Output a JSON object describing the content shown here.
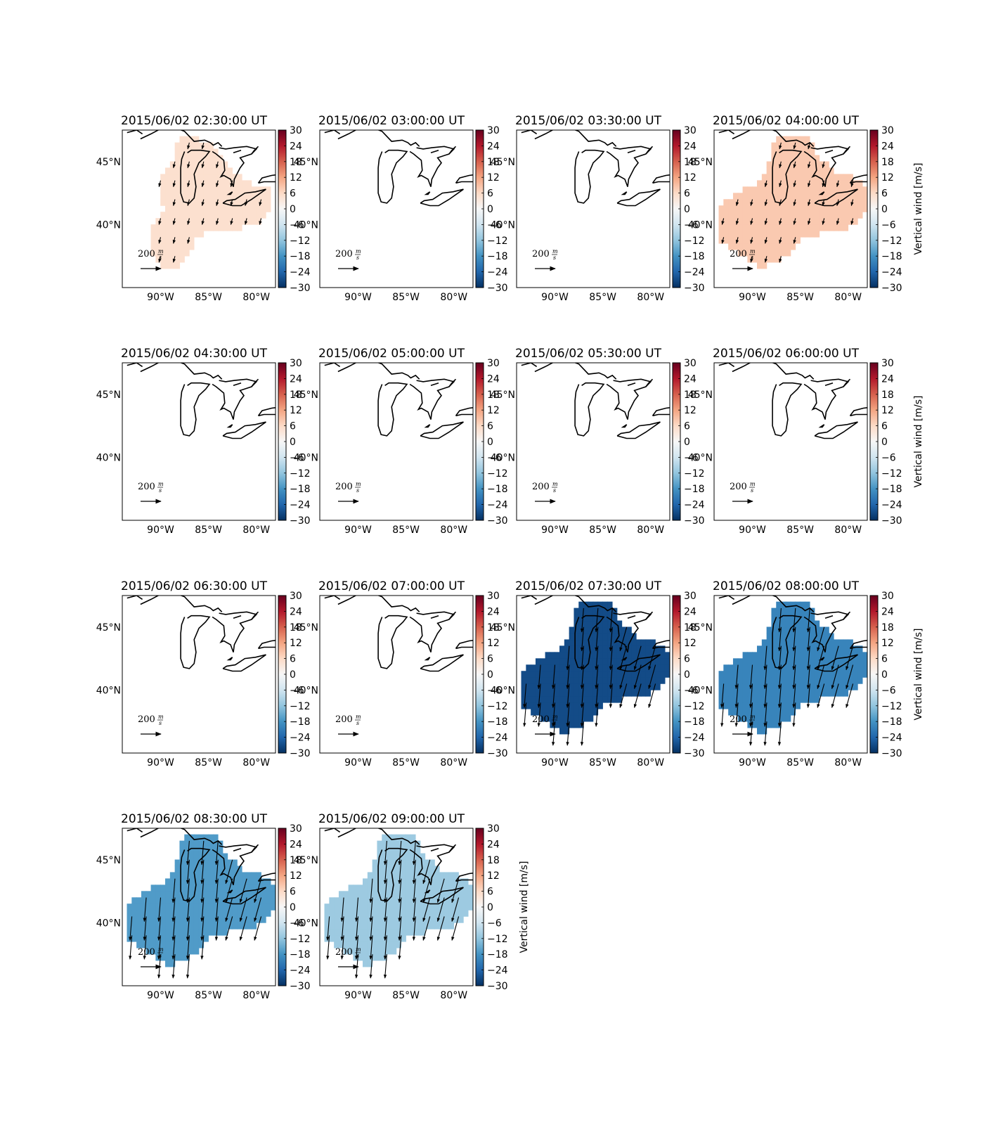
{
  "figure": {
    "colorbar": {
      "ticks": [
        "30",
        "24",
        "18",
        "12",
        "6",
        "0",
        "−6",
        "−12",
        "−18",
        "−24",
        "−30"
      ],
      "range": [
        -30,
        30
      ],
      "colormap": "RdBu_r",
      "label": "Vertical wind [m/s]"
    },
    "axes": {
      "x_ticks": [
        "90°W",
        "85°W",
        "80°W"
      ],
      "y_ticks": [
        "45°N",
        "40°N"
      ],
      "lon_range": [
        -94,
        -78
      ],
      "lat_range": [
        35,
        47.5
      ]
    },
    "reference_arrow": {
      "value": "200",
      "unit_num": "m",
      "unit_den": "s"
    },
    "panels": [
      {
        "title": "2015/06/02 02:30:00 UT",
        "vertical_wind": 5,
        "region": "south",
        "vectors": "weak southward",
        "colorbar_label_shown": false
      },
      {
        "title": "2015/06/02 03:00:00 UT",
        "vertical_wind": null,
        "region": "none",
        "vectors": "none",
        "colorbar_label_shown": false
      },
      {
        "title": "2015/06/02 03:30:00 UT",
        "vertical_wind": null,
        "region": "none",
        "vectors": "none",
        "colorbar_label_shown": false
      },
      {
        "title": "2015/06/02 04:00:00 UT",
        "vertical_wind": 8,
        "region": "full",
        "vectors": "weak southward",
        "colorbar_label_shown": true
      },
      {
        "title": "2015/06/02 04:30:00 UT",
        "vertical_wind": null,
        "region": "none",
        "vectors": "none",
        "colorbar_label_shown": false
      },
      {
        "title": "2015/06/02 05:00:00 UT",
        "vertical_wind": null,
        "region": "none",
        "vectors": "none",
        "colorbar_label_shown": false
      },
      {
        "title": "2015/06/02 05:30:00 UT",
        "vertical_wind": null,
        "region": "none",
        "vectors": "none",
        "colorbar_label_shown": false
      },
      {
        "title": "2015/06/02 06:00:00 UT",
        "vertical_wind": null,
        "region": "none",
        "vectors": "none",
        "colorbar_label_shown": true
      },
      {
        "title": "2015/06/02 06:30:00 UT",
        "vertical_wind": null,
        "region": "none",
        "vectors": "none",
        "colorbar_label_shown": false
      },
      {
        "title": "2015/06/02 07:00:00 UT",
        "vertical_wind": null,
        "region": "none",
        "vectors": "none",
        "colorbar_label_shown": false
      },
      {
        "title": "2015/06/02 07:30:00 UT",
        "vertical_wind": -27,
        "region": "full",
        "vectors": "strong southward",
        "colorbar_label_shown": false
      },
      {
        "title": "2015/06/02 08:00:00 UT",
        "vertical_wind": -20,
        "region": "full",
        "vectors": "strong southward",
        "colorbar_label_shown": true
      },
      {
        "title": "2015/06/02 08:30:00 UT",
        "vertical_wind": -17,
        "region": "full",
        "vectors": "strong southward",
        "colorbar_label_shown": false
      },
      {
        "title": "2015/06/02 09:00:00 UT",
        "vertical_wind": -11,
        "region": "full",
        "vectors": "strong southward",
        "colorbar_label_shown": true
      }
    ]
  }
}
